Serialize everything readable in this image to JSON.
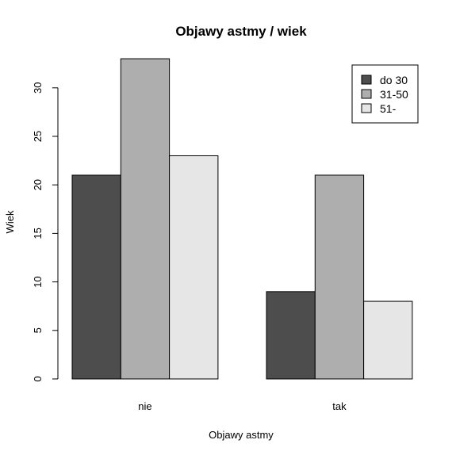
{
  "chart_data": {
    "type": "bar",
    "title": "Objawy astmy / wiek",
    "xlabel": "Objawy astmy",
    "ylabel": "Wiek",
    "categories": [
      "nie",
      "tak"
    ],
    "series": [
      {
        "name": "do 30",
        "values": [
          21,
          9
        ],
        "color": "#4d4d4d"
      },
      {
        "name": "31-50",
        "values": [
          33,
          21
        ],
        "color": "#aeaeae"
      },
      {
        "name": "51-",
        "values": [
          23,
          8
        ],
        "color": "#e6e6e6"
      }
    ],
    "ylim": [
      0,
      33
    ],
    "yticks": [
      0,
      5,
      10,
      15,
      20,
      25,
      30
    ],
    "legend_position": "top-right",
    "grid": false
  }
}
